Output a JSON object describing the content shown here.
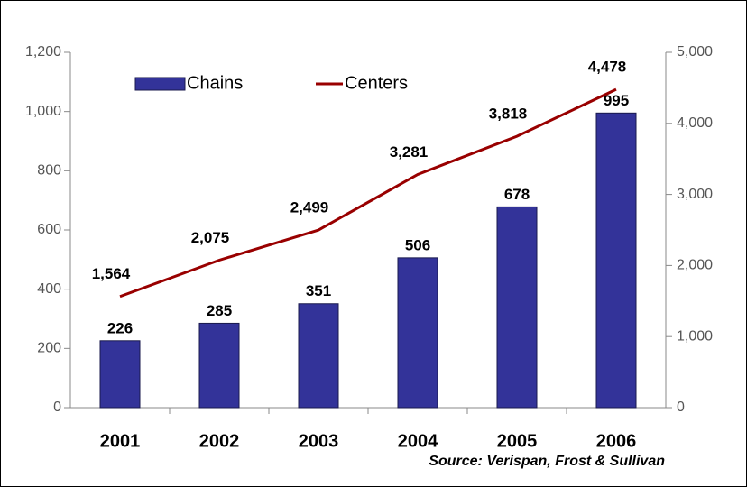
{
  "chart_data": {
    "type": "bar",
    "categories": [
      "2001",
      "2002",
      "2003",
      "2004",
      "2005",
      "2006"
    ],
    "series": [
      {
        "name": "Chains",
        "color": "#333399",
        "values": [
          226,
          285,
          351,
          506,
          678,
          995
        ]
      },
      {
        "name": "Centers",
        "color": "#990000",
        "type": "line",
        "axis": "y2",
        "values": [
          1564,
          2075,
          2499,
          3281,
          3818,
          4478
        ],
        "value_labels": [
          "1,564",
          "2,075",
          "2,499",
          "3,281",
          "3,818",
          "4,478"
        ]
      }
    ],
    "ylim": [
      0,
      1200
    ],
    "yticks": [
      0,
      200,
      400,
      600,
      800,
      {
        "value": 1000,
        "label": "1,000"
      },
      {
        "value": 1200,
        "label": "1,200"
      }
    ],
    "y2lim": [
      0,
      5000
    ],
    "y2ticks": [
      0,
      {
        "value": 1000,
        "label": "1,000"
      },
      {
        "value": 2000,
        "label": "2,000"
      },
      {
        "value": 3000,
        "label": "3,000"
      },
      {
        "value": 4000,
        "label": "4,000"
      },
      {
        "value": 5000,
        "label": "5,000"
      }
    ],
    "annotation": "Source: Verispan, Frost & Sullivan",
    "legend": "top-left"
  }
}
